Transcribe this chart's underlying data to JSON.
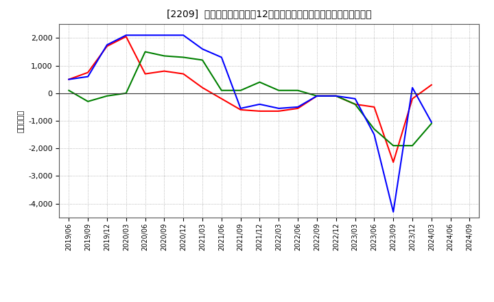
{
  "title": "[2209]  キャッシュフローの12か月移動合計の対前年同期増減額の推移",
  "ylabel": "（百万円）",
  "background_color": "#ffffff",
  "grid_color": "#999999",
  "xlabels": [
    "2019/06",
    "2019/09",
    "2019/12",
    "2020/03",
    "2020/06",
    "2020/09",
    "2020/12",
    "2021/03",
    "2021/06",
    "2021/09",
    "2021/12",
    "2022/03",
    "2022/06",
    "2022/09",
    "2022/12",
    "2023/03",
    "2023/06",
    "2023/09",
    "2023/12",
    "2024/03",
    "2024/06",
    "2024/09"
  ],
  "operating_cf": [
    500,
    750,
    1700,
    2050,
    700,
    800,
    700,
    200,
    -200,
    -600,
    -650,
    -650,
    -550,
    -100,
    -100,
    -400,
    -500,
    -2500,
    -200,
    300,
    null,
    null
  ],
  "investing_cf": [
    100,
    -300,
    -100,
    0,
    1500,
    1350,
    1300,
    1200,
    100,
    100,
    400,
    100,
    100,
    -100,
    -100,
    -400,
    -1300,
    -1900,
    -1900,
    -1100,
    null,
    null
  ],
  "free_cf": [
    500,
    600,
    1750,
    2100,
    2100,
    2100,
    2100,
    1600,
    1300,
    -550,
    -400,
    -550,
    -500,
    -100,
    -100,
    -200,
    -1500,
    -4300,
    200,
    -1050,
    null,
    null
  ],
  "operating_color": "#ff0000",
  "investing_color": "#008000",
  "free_color": "#0000ff",
  "ylim": [
    -4500,
    2500
  ],
  "yticks": [
    -4000,
    -3000,
    -2000,
    -1000,
    0,
    1000,
    2000
  ]
}
